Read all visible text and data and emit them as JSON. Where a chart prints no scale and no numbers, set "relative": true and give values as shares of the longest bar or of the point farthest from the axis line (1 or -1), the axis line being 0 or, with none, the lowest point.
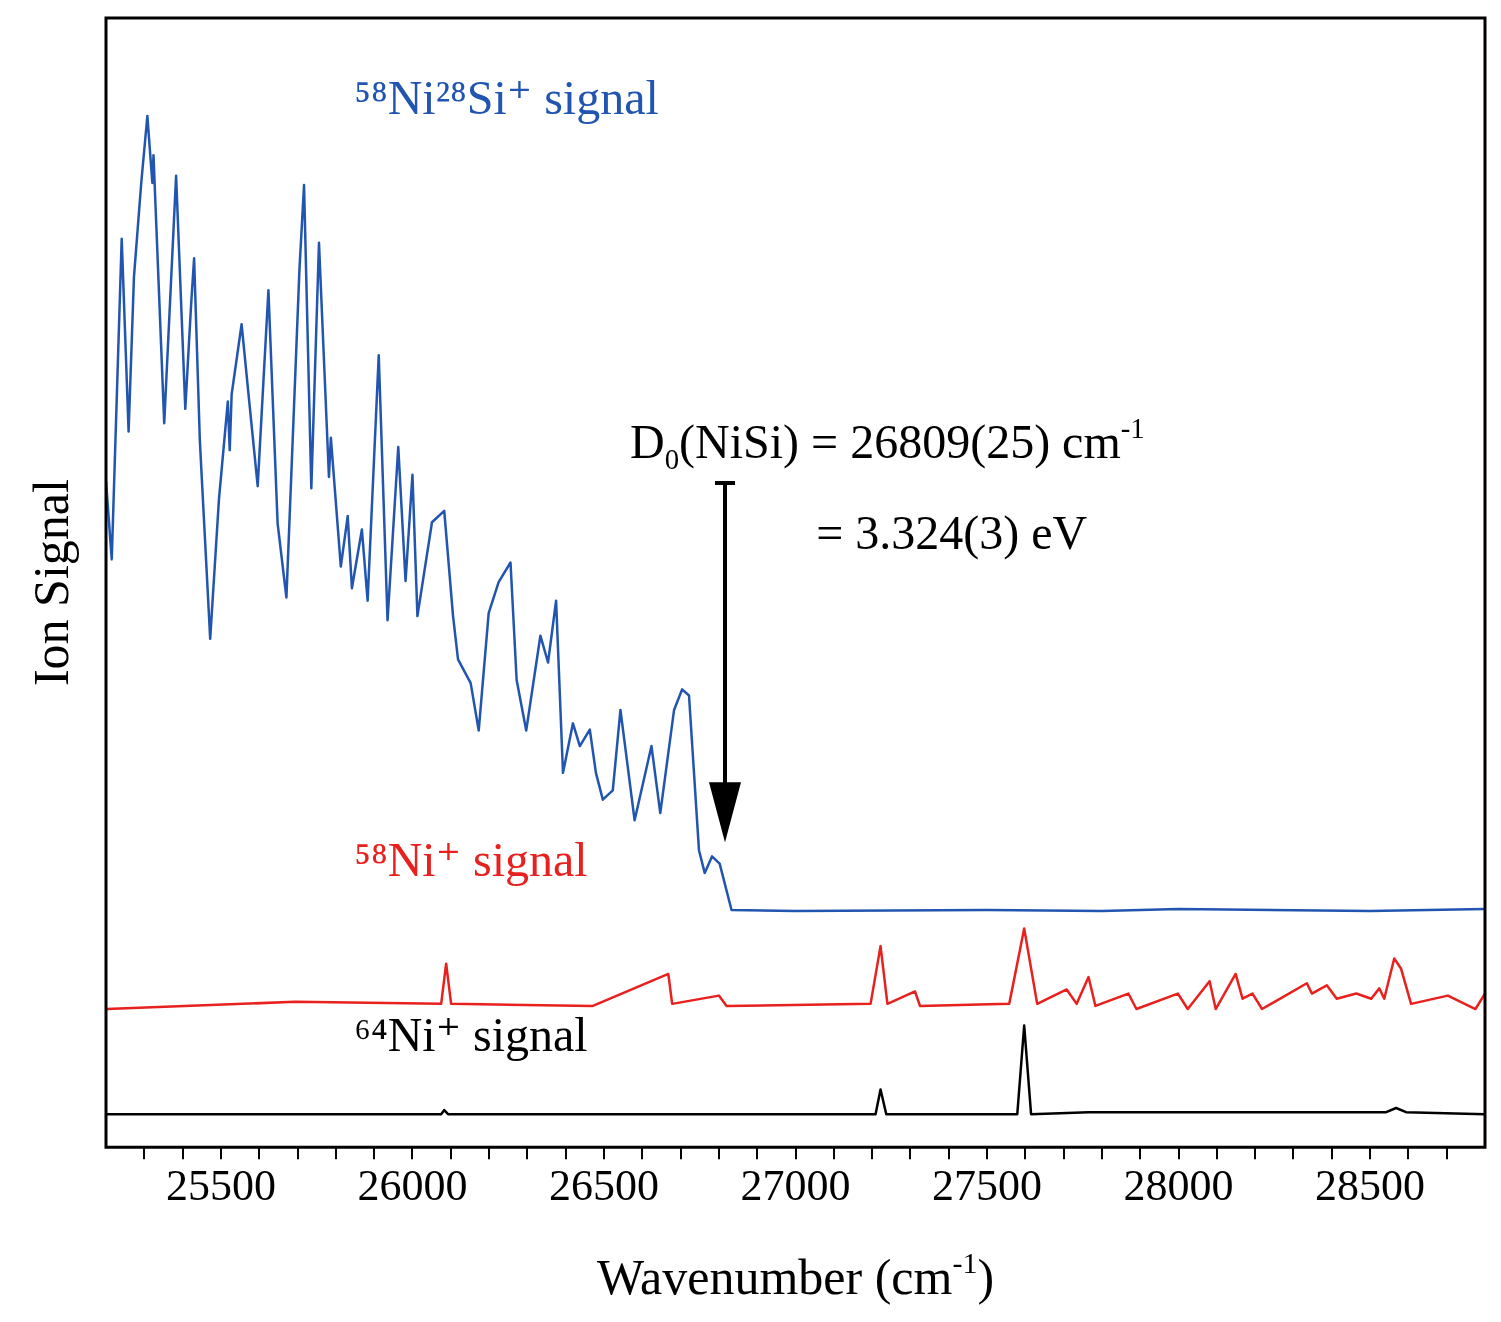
{
  "chart_data": {
    "type": "line",
    "relative": true,
    "xlabel": "Wavenumber (cm$^{-1}$)",
    "ylabel": "Ion Signal",
    "xlim": [
      25200,
      28800
    ],
    "xticks": [
      {
        "value": 25300,
        "label": null
      },
      {
        "value": 25400,
        "label": null
      },
      25500,
      {
        "value": 25600,
        "label": null
      },
      {
        "value": 25700,
        "label": null
      },
      {
        "value": 25800,
        "label": null
      },
      {
        "value": 25900,
        "label": null
      },
      26000,
      {
        "value": 26100,
        "label": null
      },
      {
        "value": 26200,
        "label": null
      },
      {
        "value": 26300,
        "label": null
      },
      {
        "value": 26400,
        "label": null
      },
      26500,
      {
        "value": 26600,
        "label": null
      },
      {
        "value": 26700,
        "label": null
      },
      {
        "value": 26800,
        "label": null
      },
      {
        "value": 26900,
        "label": null
      },
      27000,
      {
        "value": 27100,
        "label": null
      },
      {
        "value": 27200,
        "label": null
      },
      {
        "value": 27300,
        "label": null
      },
      {
        "value": 27400,
        "label": null
      },
      27500,
      {
        "value": 27600,
        "label": null
      },
      {
        "value": 27700,
        "label": null
      },
      {
        "value": 27800,
        "label": null
      },
      {
        "value": 27900,
        "label": null
      },
      28000,
      {
        "value": 28100,
        "label": null
      },
      {
        "value": 28200,
        "label": null
      },
      {
        "value": 28300,
        "label": null
      },
      {
        "value": 28400,
        "label": null
      },
      28500,
      {
        "value": 28600,
        "label": null
      },
      {
        "value": 28700,
        "label": null
      }
    ],
    "grid": false,
    "legend": false,
    "marker": "none",
    "annotations": [
      "D$_{0}$(NiSi) = 26809(25) cm$^{-1}$",
      "= 3.324(3) eV"
    ],
    "series": [
      {
        "name": "⁵⁸Ni²⁸Si⁺ signal",
        "color": "#2255b0",
        "x": [
          25200,
          25215,
          25241,
          25259,
          25273,
          25292,
          25308,
          25321,
          25324,
          25352,
          25383,
          25407,
          25422,
          25430,
          25445,
          25472,
          25495,
          25518,
          25523,
          25528,
          25554,
          25575,
          25596,
          25624,
          25648,
          25671,
          25705,
          25717,
          25736,
          25756,
          25782,
          25787,
          25813,
          25831,
          25842,
          25868,
          25883,
          25912,
          25935,
          25963,
          25982,
          26000,
          26013,
          26051,
          26083,
          26106,
          26119,
          26152,
          26173,
          26199,
          26225,
          26256,
          26272,
          26297,
          26334,
          26354,
          26375,
          26393,
          26419,
          26437,
          26463,
          26479,
          26497,
          26523,
          26543,
          26580,
          26624,
          26647,
          26683,
          26704,
          26722,
          26748,
          26763,
          26782,
          26802,
          26833,
          27000,
          27500,
          27800,
          28000,
          28500,
          28800
        ],
        "values": [
          0.646,
          0.57,
          0.881,
          0.694,
          0.844,
          0.935,
          1.0,
          0.935,
          0.962,
          0.702,
          0.942,
          0.716,
          0.816,
          0.862,
          0.685,
          0.493,
          0.629,
          0.723,
          0.676,
          0.73,
          0.798,
          0.719,
          0.641,
          0.831,
          0.605,
          0.533,
          0.851,
          0.933,
          0.639,
          0.877,
          0.65,
          0.688,
          0.563,
          0.612,
          0.542,
          0.599,
          0.53,
          0.768,
          0.511,
          0.679,
          0.549,
          0.652,
          0.515,
          0.606,
          0.617,
          0.515,
          0.473,
          0.45,
          0.404,
          0.518,
          0.548,
          0.567,
          0.453,
          0.404,
          0.496,
          0.47,
          0.53,
          0.363,
          0.411,
          0.389,
          0.405,
          0.363,
          0.337,
          0.346,
          0.424,
          0.317,
          0.389,
          0.324,
          0.424,
          0.444,
          0.438,
          0.288,
          0.266,
          0.282,
          0.275,
          0.23,
          0.229,
          0.23,
          0.229,
          0.231,
          0.229,
          0.231
        ]
      },
      {
        "name": "⁵⁸Ni⁺ signal",
        "color": "#e8201e",
        "x": [
          25202,
          25694,
          26075,
          26088,
          26101,
          26471,
          26668,
          26678,
          26800,
          26820,
          27196,
          27222,
          27240,
          27312,
          27325,
          27558,
          27597,
          27631,
          27708,
          27734,
          27765,
          27783,
          27869,
          27890,
          27998,
          28024,
          28081,
          28097,
          28149,
          28167,
          28193,
          28218,
          28335,
          28348,
          28387,
          28413,
          28464,
          28503,
          28524,
          28537,
          28563,
          28581,
          28607,
          28703,
          28775,
          28800
        ],
        "values": [
          0.134,
          0.141,
          0.139,
          0.178,
          0.139,
          0.137,
          0.168,
          0.139,
          0.147,
          0.137,
          0.139,
          0.195,
          0.139,
          0.151,
          0.137,
          0.139,
          0.212,
          0.139,
          0.153,
          0.139,
          0.165,
          0.137,
          0.149,
          0.134,
          0.149,
          0.134,
          0.161,
          0.134,
          0.168,
          0.144,
          0.149,
          0.134,
          0.159,
          0.149,
          0.157,
          0.144,
          0.149,
          0.144,
          0.154,
          0.144,
          0.183,
          0.173,
          0.139,
          0.147,
          0.134,
          0.149
        ]
      },
      {
        "name": "⁶⁴Ni⁺ signal",
        "color": "#000000",
        "x": [
          25202,
          26075,
          26083,
          26093,
          27209,
          27222,
          27237,
          27579,
          27597,
          27615,
          27765,
          28542,
          28568,
          28594,
          28800
        ],
        "values": [
          0.032,
          0.032,
          0.036,
          0.032,
          0.032,
          0.056,
          0.032,
          0.032,
          0.118,
          0.032,
          0.034,
          0.034,
          0.038,
          0.034,
          0.032
        ]
      }
    ]
  }
}
